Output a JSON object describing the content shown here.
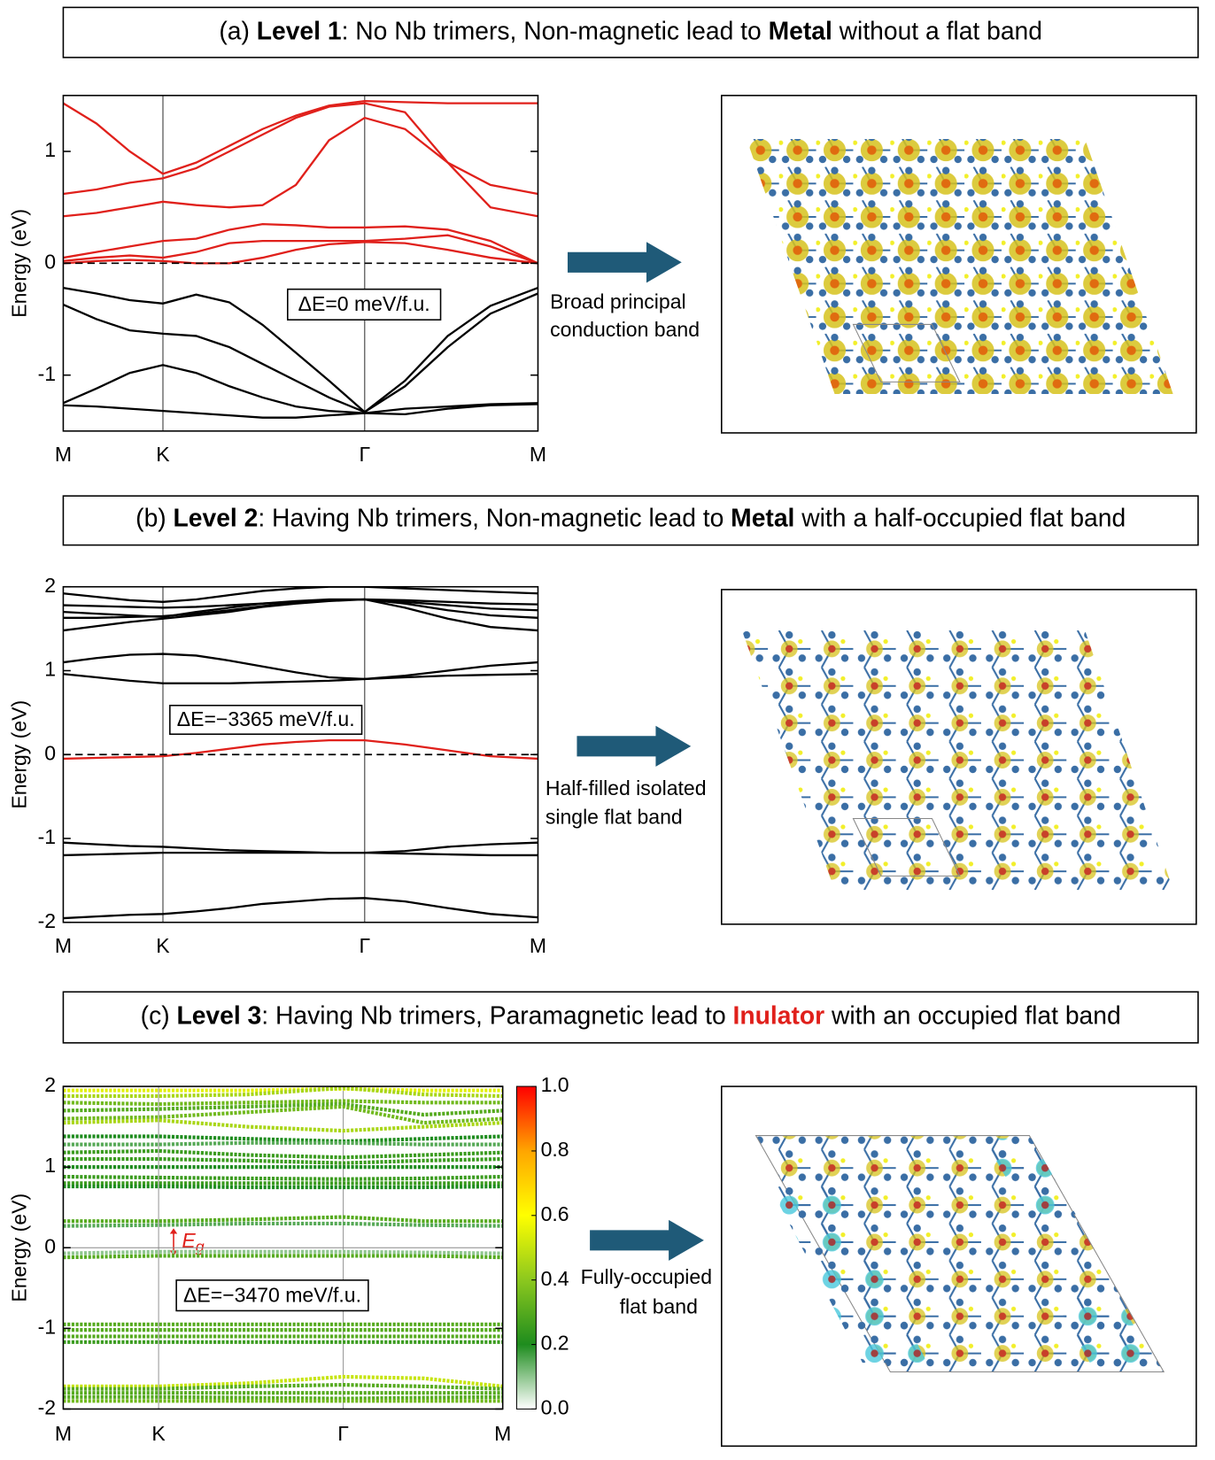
{
  "chart_data": [
    {
      "type": "line",
      "title": [
        {
          "text": "(a) "
        },
        {
          "text": "Level 1",
          "bold": true
        },
        {
          "text": ": No Nb trimers, Non-magnetic lead to "
        },
        {
          "text": "Metal",
          "bold": true
        },
        {
          "text": " without a flat band"
        }
      ],
      "ylabel": "Energy (eV)",
      "annotation": "ΔE=0 meV/f.u.",
      "caption": [
        "Broad principal",
        "conduction band"
      ],
      "xlim": [
        0,
        1
      ],
      "ylim": [
        -1.5,
        1.5
      ],
      "yticks": [
        -1,
        0,
        1
      ],
      "xticks": [
        {
          "value": 0,
          "label": "M"
        },
        {
          "value": 0.21,
          "label": "K"
        },
        {
          "value": 0.635,
          "label": "Γ"
        },
        {
          "value": 1,
          "label": "M"
        }
      ],
      "reference_line": 0,
      "x": [
        0,
        0.07,
        0.14,
        0.21,
        0.28,
        0.35,
        0.42,
        0.49,
        0.56,
        0.635,
        0.72,
        0.81,
        0.9,
        1
      ],
      "series": [
        {
          "color": "#e0201b",
          "values": [
            1.43,
            1.25,
            1.0,
            0.8,
            0.9,
            1.05,
            1.2,
            1.32,
            1.41,
            1.45,
            1.44,
            1.43,
            1.43,
            1.43
          ]
        },
        {
          "color": "#e0201b",
          "values": [
            0.62,
            0.66,
            0.72,
            0.76,
            0.85,
            1.0,
            1.15,
            1.3,
            1.4,
            1.43,
            1.35,
            0.9,
            0.5,
            0.42
          ]
        },
        {
          "color": "#e0201b",
          "values": [
            0.42,
            0.45,
            0.5,
            0.55,
            0.52,
            0.5,
            0.52,
            0.7,
            1.1,
            1.3,
            1.2,
            0.9,
            0.7,
            0.62
          ]
        },
        {
          "color": "#e0201b",
          "values": [
            0.05,
            0.1,
            0.15,
            0.2,
            0.22,
            0.3,
            0.35,
            0.34,
            0.32,
            0.32,
            0.33,
            0.3,
            0.2,
            0.0
          ]
        },
        {
          "color": "#e0201b",
          "values": [
            0.02,
            0.05,
            0.07,
            0.05,
            0.1,
            0.18,
            0.2,
            0.2,
            0.2,
            0.2,
            0.22,
            0.25,
            0.15,
            0.0
          ]
        },
        {
          "color": "#e0201b",
          "values": [
            0.0,
            0.02,
            0.03,
            0.02,
            0.0,
            0.0,
            0.05,
            0.12,
            0.17,
            0.19,
            0.18,
            0.12,
            0.05,
            0.0
          ]
        },
        {
          "color": "#000000",
          "values": [
            -0.22,
            -0.27,
            -0.33,
            -0.36,
            -0.28,
            -0.35,
            -0.55,
            -0.8,
            -1.05,
            -1.33,
            -1.05,
            -0.65,
            -0.38,
            -0.22
          ]
        },
        {
          "color": "#000000",
          "values": [
            -0.37,
            -0.5,
            -0.6,
            -0.63,
            -0.65,
            -0.75,
            -0.9,
            -1.05,
            -1.2,
            -1.33,
            -1.1,
            -0.75,
            -0.45,
            -0.27
          ]
        },
        {
          "color": "#000000",
          "values": [
            -1.25,
            -1.12,
            -0.98,
            -0.91,
            -0.98,
            -1.1,
            -1.2,
            -1.28,
            -1.32,
            -1.34,
            -1.35,
            -1.3,
            -1.27,
            -1.26
          ]
        },
        {
          "color": "#000000",
          "values": [
            -1.27,
            -1.28,
            -1.3,
            -1.32,
            -1.34,
            -1.36,
            -1.38,
            -1.38,
            -1.36,
            -1.34,
            -1.3,
            -1.28,
            -1.26,
            -1.25
          ]
        }
      ]
    },
    {
      "type": "line",
      "title": [
        {
          "text": "(b) "
        },
        {
          "text": "Level 2",
          "bold": true
        },
        {
          "text": ": Having Nb trimers, Non-magnetic lead to "
        },
        {
          "text": "Metal",
          "bold": true
        },
        {
          "text": " with a half-occupied flat band"
        }
      ],
      "ylabel": "Energy (eV)",
      "annotation": "ΔE=−3365 meV/f.u.",
      "caption": [
        "Half-filled isolated",
        "single flat band"
      ],
      "xlim": [
        0,
        1
      ],
      "ylim": [
        -2,
        2
      ],
      "yticks": [
        -2,
        -1,
        0,
        1,
        2
      ],
      "xticks": [
        {
          "value": 0,
          "label": "M"
        },
        {
          "value": 0.21,
          "label": "K"
        },
        {
          "value": 0.635,
          "label": "Γ"
        },
        {
          "value": 1,
          "label": "M"
        }
      ],
      "reference_line": 0,
      "x": [
        0,
        0.07,
        0.14,
        0.21,
        0.28,
        0.35,
        0.42,
        0.49,
        0.56,
        0.635,
        0.72,
        0.81,
        0.9,
        1
      ],
      "series": [
        {
          "color": "#e0201b",
          "values": [
            -0.05,
            -0.04,
            -0.03,
            -0.02,
            0.02,
            0.07,
            0.12,
            0.15,
            0.17,
            0.17,
            0.12,
            0.05,
            -0.02,
            -0.05
          ]
        },
        {
          "color": "#000000",
          "values": [
            1.1,
            1.15,
            1.19,
            1.2,
            1.18,
            1.12,
            1.05,
            0.98,
            0.92,
            0.9,
            0.94,
            1.0,
            1.06,
            1.1
          ]
        },
        {
          "color": "#000000",
          "values": [
            0.96,
            0.92,
            0.88,
            0.85,
            0.85,
            0.85,
            0.86,
            0.87,
            0.88,
            0.9,
            0.92,
            0.94,
            0.95,
            0.96
          ]
        },
        {
          "color": "#000000",
          "values": [
            1.48,
            1.53,
            1.58,
            1.62,
            1.66,
            1.7,
            1.76,
            1.8,
            1.83,
            1.85,
            1.75,
            1.62,
            1.52,
            1.48
          ]
        },
        {
          "color": "#000000",
          "values": [
            1.63,
            1.63,
            1.64,
            1.65,
            1.68,
            1.72,
            1.77,
            1.81,
            1.84,
            1.85,
            1.8,
            1.72,
            1.66,
            1.63
          ]
        },
        {
          "color": "#000000",
          "values": [
            1.7,
            1.68,
            1.66,
            1.64,
            1.7,
            1.75,
            1.8,
            1.83,
            1.85,
            1.85,
            1.82,
            1.78,
            1.74,
            1.72
          ]
        },
        {
          "color": "#000000",
          "values": [
            1.78,
            1.77,
            1.76,
            1.75,
            1.76,
            1.78,
            1.8,
            1.82,
            1.84,
            1.85,
            1.84,
            1.82,
            1.8,
            1.79
          ]
        },
        {
          "color": "#000000",
          "values": [
            1.92,
            1.88,
            1.84,
            1.82,
            1.85,
            1.9,
            1.95,
            1.98,
            2.0,
            2.0,
            1.98,
            1.96,
            1.94,
            1.92
          ]
        },
        {
          "color": "#000000",
          "values": [
            -1.05,
            -1.07,
            -1.09,
            -1.1,
            -1.12,
            -1.14,
            -1.15,
            -1.16,
            -1.17,
            -1.17,
            -1.15,
            -1.1,
            -1.07,
            -1.05
          ]
        },
        {
          "color": "#000000",
          "values": [
            -1.2,
            -1.19,
            -1.18,
            -1.17,
            -1.17,
            -1.17,
            -1.17,
            -1.17,
            -1.17,
            -1.17,
            -1.18,
            -1.19,
            -1.2,
            -1.2
          ]
        },
        {
          "color": "#000000",
          "values": [
            -1.95,
            -1.93,
            -1.91,
            -1.9,
            -1.87,
            -1.83,
            -1.78,
            -1.75,
            -1.72,
            -1.71,
            -1.75,
            -1.83,
            -1.9,
            -1.94
          ]
        }
      ]
    },
    {
      "type": "spectral",
      "title": [
        {
          "text": "(c) "
        },
        {
          "text": "Level 3",
          "bold": true
        },
        {
          "text": ": Having Nb trimers, Paramagnetic lead to "
        },
        {
          "text": "Inulator",
          "bold": true,
          "color": "#e0201b"
        },
        {
          "text": " with an occupied flat band"
        }
      ],
      "ylabel": "Energy (eV)",
      "annotation": "ΔE=−3470 meV/f.u.",
      "caption": [
        "Fully-occupied",
        "flat band"
      ],
      "gap_label": {
        "text": "E",
        "subscript": "g"
      },
      "xlim": [
        0,
        1
      ],
      "ylim": [
        -2,
        2
      ],
      "yticks": [
        -2,
        -1,
        0,
        1,
        2
      ],
      "xticks": [
        {
          "value": 0,
          "label": "M"
        },
        {
          "value": 0.217,
          "label": "K"
        },
        {
          "value": 0.637,
          "label": "Γ"
        },
        {
          "value": 1,
          "label": "M"
        }
      ],
      "reference_line": 0,
      "clim": [
        0,
        1
      ],
      "cticks": [
        {
          "value": 0,
          "label": "0.0"
        },
        0.2,
        0.4,
        0.6,
        0.8,
        {
          "value": 1,
          "label": "1.0"
        }
      ],
      "colormap": [
        "#ffffff",
        "#1e8c1e",
        "#8cc81e",
        "#ffff00",
        "#ffa500",
        "#ff0000"
      ],
      "x": [
        0,
        0.217,
        0.42,
        0.637,
        0.82,
        1
      ],
      "series": [
        {
          "weight": 0.55,
          "values": [
            1.95,
            1.95,
            1.95,
            1.97,
            1.95,
            1.95
          ]
        },
        {
          "weight": 0.45,
          "values": [
            1.88,
            1.88,
            1.9,
            1.98,
            1.9,
            1.88
          ]
        },
        {
          "weight": 0.35,
          "values": [
            1.8,
            1.78,
            1.8,
            1.82,
            1.8,
            1.8
          ]
        },
        {
          "weight": 0.3,
          "values": [
            1.7,
            1.72,
            1.75,
            1.78,
            1.65,
            1.7
          ]
        },
        {
          "weight": 0.35,
          "values": [
            1.6,
            1.62,
            1.68,
            1.75,
            1.55,
            1.6
          ]
        },
        {
          "weight": 0.45,
          "values": [
            1.55,
            1.58,
            1.5,
            1.45,
            1.5,
            1.55
          ]
        },
        {
          "weight": 0.2,
          "values": [
            1.38,
            1.38,
            1.35,
            1.32,
            1.35,
            1.38
          ]
        },
        {
          "weight": 0.15,
          "values": [
            1.28,
            1.28,
            1.3,
            1.3,
            1.28,
            1.28
          ]
        },
        {
          "weight": 0.25,
          "values": [
            1.18,
            1.2,
            1.15,
            1.12,
            1.15,
            1.18
          ]
        },
        {
          "weight": 0.25,
          "values": [
            1.1,
            1.1,
            1.08,
            1.05,
            1.08,
            1.1
          ]
        },
        {
          "weight": 0.2,
          "values": [
            1.0,
            1.0,
            1.0,
            1.0,
            1.0,
            1.0
          ]
        },
        {
          "weight": 0.25,
          "values": [
            0.88,
            0.87,
            0.86,
            0.85,
            0.86,
            0.88
          ]
        },
        {
          "weight": 0.25,
          "values": [
            0.8,
            0.8,
            0.8,
            0.8,
            0.8,
            0.8
          ]
        },
        {
          "weight": 0.2,
          "values": [
            0.76,
            0.76,
            0.75,
            0.75,
            0.75,
            0.76
          ]
        },
        {
          "weight": 0.3,
          "values": [
            0.33,
            0.33,
            0.35,
            0.38,
            0.33,
            0.33
          ]
        },
        {
          "weight": 0.15,
          "values": [
            0.27,
            0.28,
            0.3,
            0.3,
            0.28,
            0.27
          ]
        },
        {
          "weight": 0.3,
          "values": [
            -0.12,
            -0.1,
            -0.1,
            -0.1,
            -0.1,
            -0.12
          ]
        },
        {
          "weight": 0.1,
          "values": [
            -0.07,
            -0.05,
            -0.05,
            -0.05,
            -0.06,
            -0.07
          ]
        },
        {
          "weight": 0.3,
          "values": [
            -0.95,
            -0.95,
            -0.95,
            -0.95,
            -0.95,
            -0.95
          ]
        },
        {
          "weight": 0.3,
          "values": [
            -1.02,
            -1.02,
            -1.02,
            -1.02,
            -1.02,
            -1.02
          ]
        },
        {
          "weight": 0.3,
          "values": [
            -1.1,
            -1.1,
            -1.1,
            -1.1,
            -1.1,
            -1.1
          ]
        },
        {
          "weight": 0.25,
          "values": [
            -1.17,
            -1.17,
            -1.17,
            -1.17,
            -1.17,
            -1.17
          ]
        },
        {
          "weight": 0.5,
          "values": [
            -1.72,
            -1.72,
            -1.68,
            -1.6,
            -1.62,
            -1.72
          ]
        },
        {
          "weight": 0.3,
          "values": [
            -1.75,
            -1.75,
            -1.72,
            -1.7,
            -1.72,
            -1.75
          ]
        },
        {
          "weight": 0.3,
          "values": [
            -1.8,
            -1.8,
            -1.8,
            -1.8,
            -1.8,
            -1.8
          ]
        },
        {
          "weight": 0.3,
          "values": [
            -1.85,
            -1.85,
            -1.86,
            -1.87,
            -1.86,
            -1.85
          ]
        },
        {
          "weight": 0.35,
          "values": [
            -1.9,
            -1.9,
            -1.9,
            -1.9,
            -1.9,
            -1.9
          ]
        }
      ]
    }
  ]
}
